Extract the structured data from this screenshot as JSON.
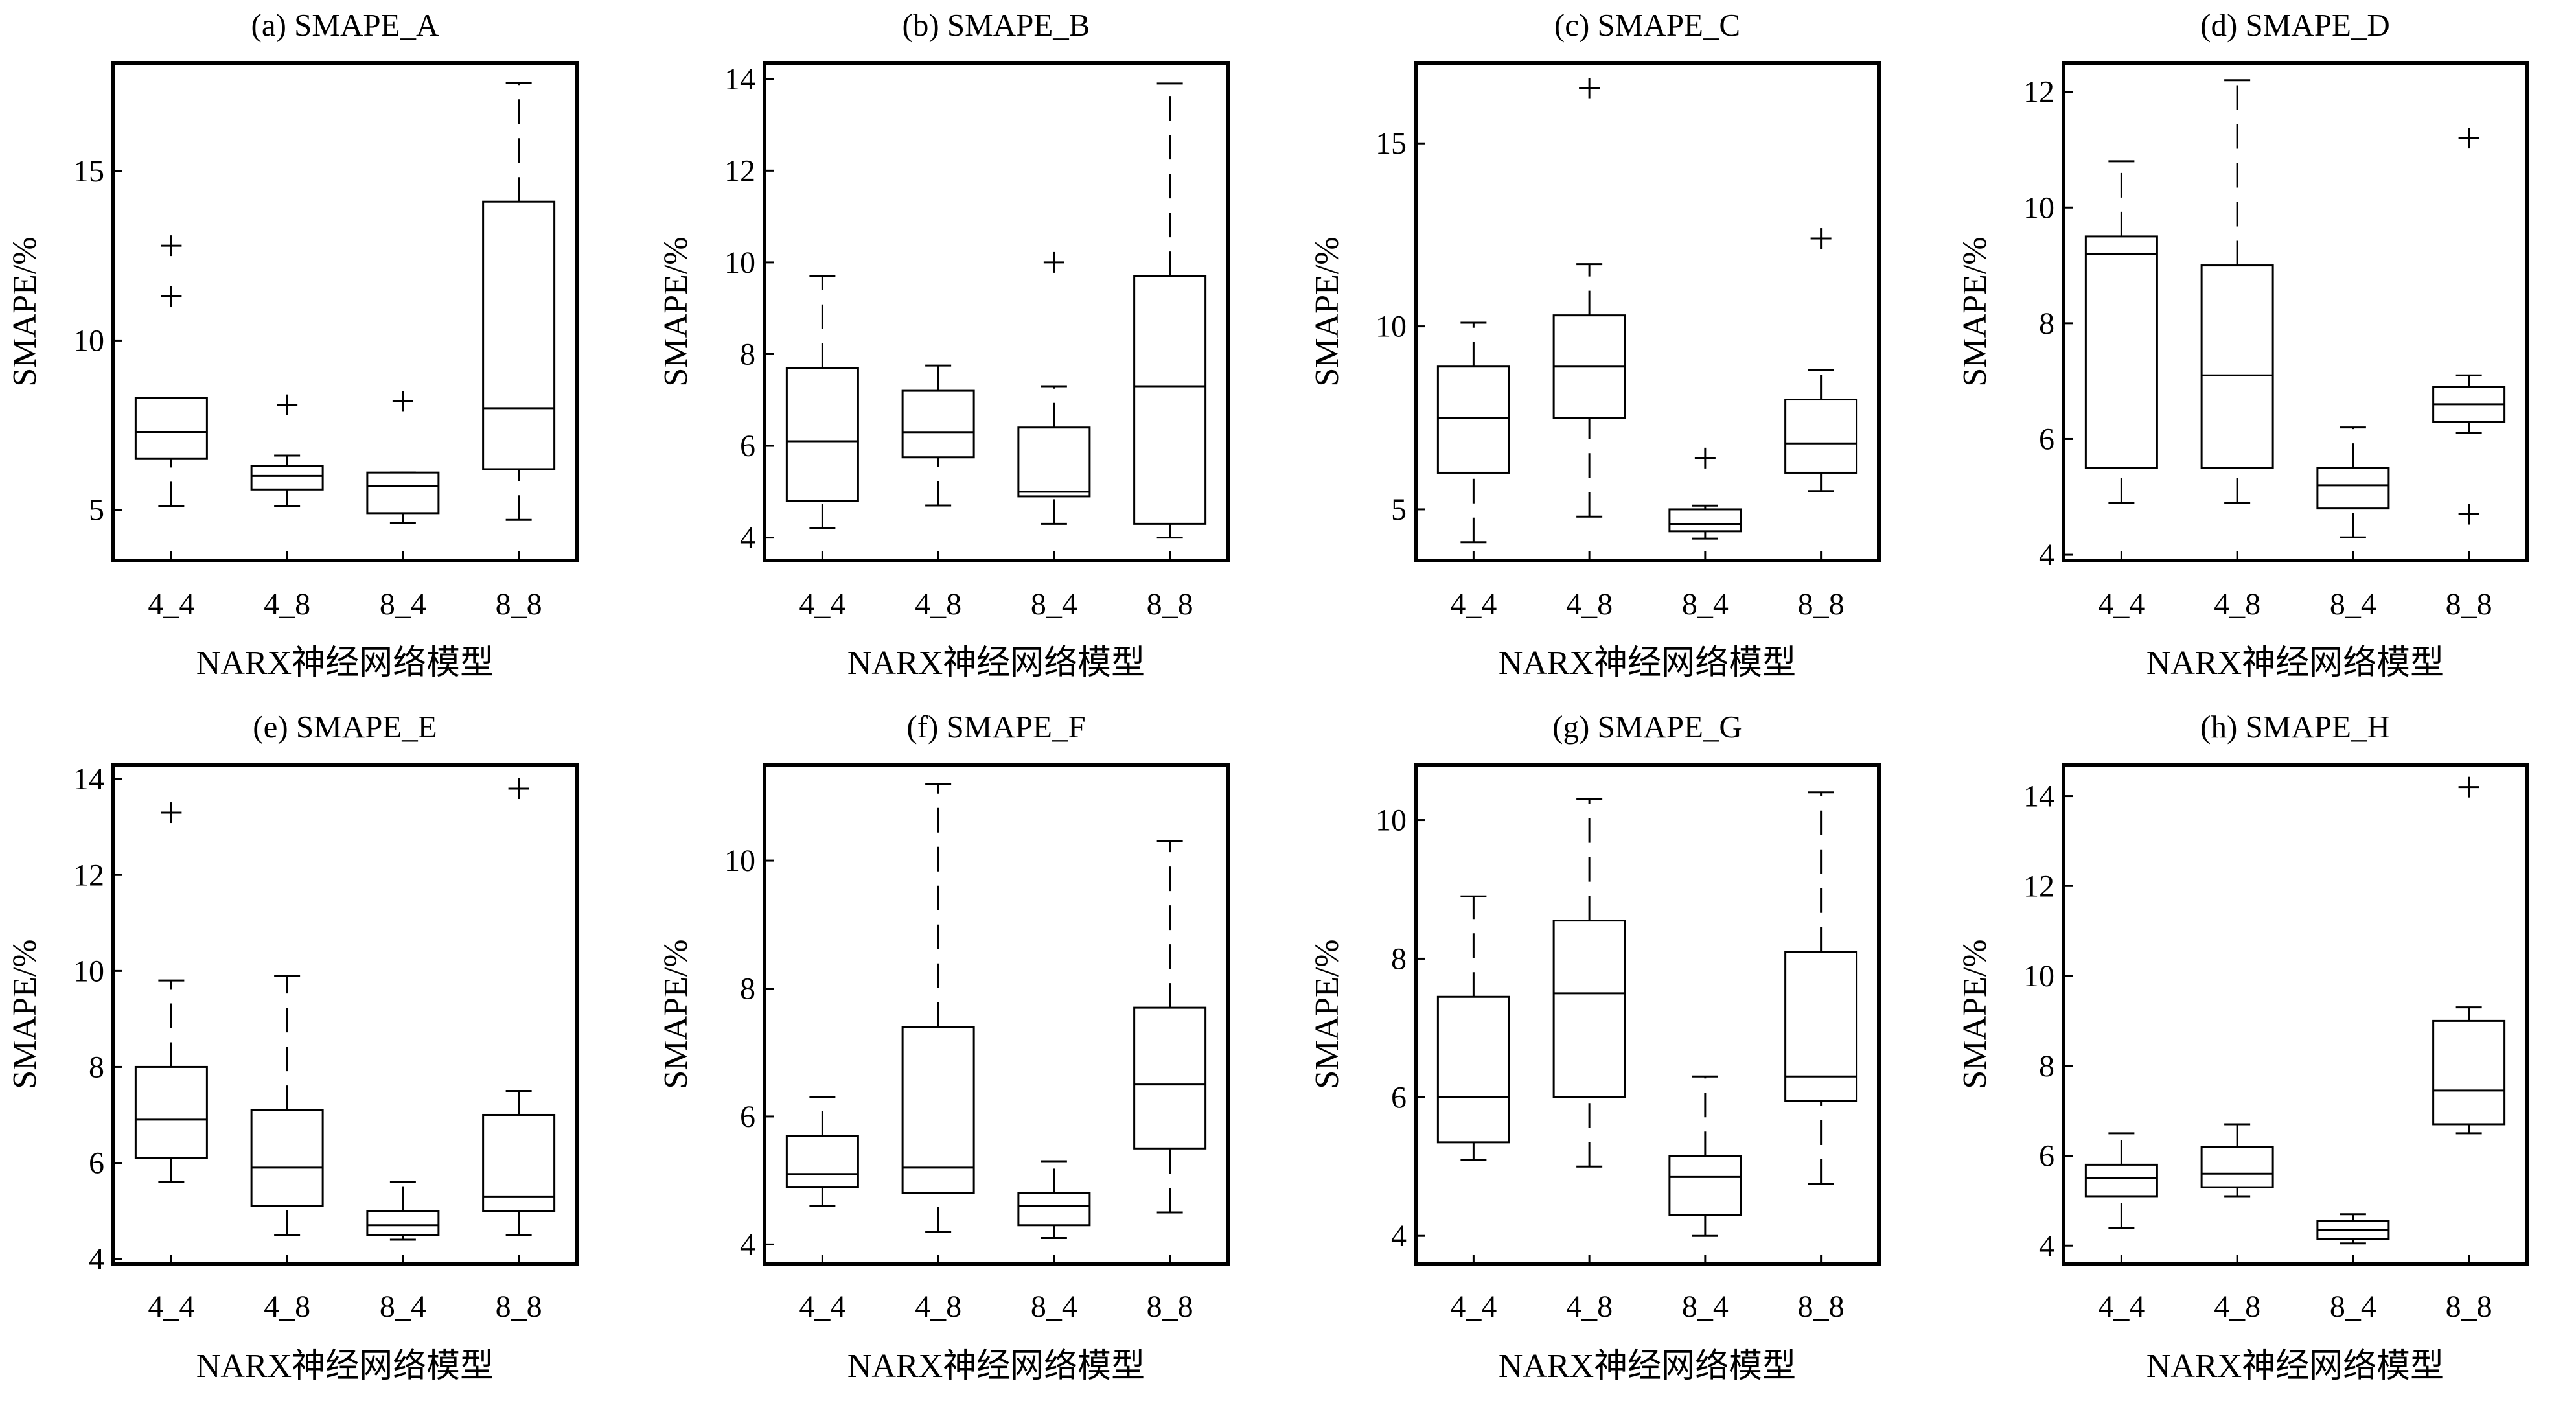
{
  "chart_data": [
    {
      "type": "box",
      "title": "(a) SMAPE_A",
      "xlabel": "NARX神经网络模型",
      "ylabel": "SMAPE/%",
      "categories": [
        "4_4",
        "4_8",
        "8_4",
        "8_8"
      ],
      "ylim": [
        3.5,
        18.2
      ],
      "yticks": [
        5,
        10,
        15
      ],
      "boxes": [
        {
          "category": "4_4",
          "whisker_low": 5.1,
          "q1": 6.5,
          "median": 7.3,
          "q3": 8.3,
          "whisker_high": 8.3,
          "outliers": [
            11.3,
            12.8
          ]
        },
        {
          "category": "4_8",
          "whisker_low": 5.1,
          "q1": 5.6,
          "median": 6.0,
          "q3": 6.3,
          "whisker_high": 6.6,
          "outliers": [
            8.1
          ]
        },
        {
          "category": "8_4",
          "whisker_low": 4.6,
          "q1": 4.9,
          "median": 5.7,
          "q3": 6.1,
          "whisker_high": 6.1,
          "outliers": [
            8.2
          ]
        },
        {
          "category": "8_8",
          "whisker_low": 4.7,
          "q1": 6.2,
          "median": 8.0,
          "q3": 14.1,
          "whisker_high": 17.6,
          "outliers": []
        }
      ]
    },
    {
      "type": "box",
      "title": "(b) SMAPE_B",
      "xlabel": "NARX神经网络模型",
      "ylabel": "SMAPE/%",
      "categories": [
        "4_4",
        "4_8",
        "8_4",
        "8_8"
      ],
      "ylim": [
        3.5,
        14.35
      ],
      "yticks": [
        4,
        6,
        8,
        10,
        12,
        14
      ],
      "boxes": [
        {
          "category": "4_4",
          "whisker_low": 4.2,
          "q1": 4.8,
          "median": 6.1,
          "q3": 7.7,
          "whisker_high": 9.7,
          "outliers": []
        },
        {
          "category": "4_8",
          "whisker_low": 4.7,
          "q1": 5.75,
          "median": 6.3,
          "q3": 7.2,
          "whisker_high": 7.75,
          "outliers": []
        },
        {
          "category": "8_4",
          "whisker_low": 4.3,
          "q1": 4.9,
          "median": 5.0,
          "q3": 6.4,
          "whisker_high": 7.3,
          "outliers": [
            10.0
          ]
        },
        {
          "category": "8_8",
          "whisker_low": 4.0,
          "q1": 4.3,
          "median": 7.3,
          "q3": 9.7,
          "whisker_high": 13.9,
          "outliers": []
        }
      ]
    },
    {
      "type": "box",
      "title": "(c) SMAPE_C",
      "xlabel": "NARX神经网络模型",
      "ylabel": "SMAPE/%",
      "categories": [
        "4_4",
        "4_8",
        "8_4",
        "8_8"
      ],
      "ylim": [
        3.6,
        17.2
      ],
      "yticks": [
        5,
        10,
        15
      ],
      "boxes": [
        {
          "category": "4_4",
          "whisker_low": 4.1,
          "q1": 6.0,
          "median": 7.5,
          "q3": 8.9,
          "whisker_high": 10.1,
          "outliers": []
        },
        {
          "category": "4_8",
          "whisker_low": 4.8,
          "q1": 7.5,
          "median": 8.9,
          "q3": 10.3,
          "whisker_high": 11.7,
          "outliers": [
            16.5
          ]
        },
        {
          "category": "8_4",
          "whisker_low": 4.2,
          "q1": 4.4,
          "median": 4.6,
          "q3": 5.0,
          "whisker_high": 5.1,
          "outliers": [
            6.4
          ]
        },
        {
          "category": "8_8",
          "whisker_low": 5.5,
          "q1": 6.0,
          "median": 6.8,
          "q3": 8.0,
          "whisker_high": 8.8,
          "outliers": [
            12.4
          ]
        }
      ]
    },
    {
      "type": "box",
      "title": "(d) SMAPE_D",
      "xlabel": "NARX神经网络模型",
      "ylabel": "SMAPE/%",
      "categories": [
        "4_4",
        "4_8",
        "8_4",
        "8_8"
      ],
      "ylim": [
        3.9,
        12.5
      ],
      "yticks": [
        4,
        6,
        8,
        10,
        12
      ],
      "boxes": [
        {
          "category": "4_4",
          "whisker_low": 4.9,
          "q1": 5.5,
          "median": 9.2,
          "q3": 9.5,
          "whisker_high": 10.8,
          "outliers": []
        },
        {
          "category": "4_8",
          "whisker_low": 4.9,
          "q1": 5.5,
          "median": 7.1,
          "q3": 9.0,
          "whisker_high": 12.2,
          "outliers": []
        },
        {
          "category": "8_4",
          "whisker_low": 4.3,
          "q1": 4.8,
          "median": 5.2,
          "q3": 5.5,
          "whisker_high": 6.2,
          "outliers": []
        },
        {
          "category": "8_8",
          "whisker_low": 6.1,
          "q1": 6.3,
          "median": 6.6,
          "q3": 6.9,
          "whisker_high": 7.1,
          "outliers": [
            4.7,
            11.2
          ]
        }
      ]
    },
    {
      "type": "box",
      "title": "(e) SMAPE_E",
      "xlabel": "NARX神经网络模型",
      "ylabel": "SMAPE/%",
      "categories": [
        "4_4",
        "4_8",
        "8_4",
        "8_8"
      ],
      "ylim": [
        3.9,
        14.3
      ],
      "yticks": [
        4,
        6,
        8,
        10,
        12,
        14
      ],
      "boxes": [
        {
          "category": "4_4",
          "whisker_low": 5.6,
          "q1": 6.1,
          "median": 6.9,
          "q3": 8.0,
          "whisker_high": 9.8,
          "outliers": [
            13.3
          ]
        },
        {
          "category": "4_8",
          "whisker_low": 4.5,
          "q1": 5.1,
          "median": 5.9,
          "q3": 7.1,
          "whisker_high": 9.9,
          "outliers": []
        },
        {
          "category": "8_4",
          "whisker_low": 4.4,
          "q1": 4.5,
          "median": 4.7,
          "q3": 5.0,
          "whisker_high": 5.6,
          "outliers": []
        },
        {
          "category": "8_8",
          "whisker_low": 4.5,
          "q1": 5.0,
          "median": 5.3,
          "q3": 7.0,
          "whisker_high": 7.5,
          "outliers": [
            13.8
          ]
        }
      ]
    },
    {
      "type": "box",
      "title": "(f) SMAPE_F",
      "xlabel": "NARX神经网络模型",
      "ylabel": "SMAPE/%",
      "categories": [
        "4_4",
        "4_8",
        "8_4",
        "8_8"
      ],
      "ylim": [
        3.7,
        11.5
      ],
      "yticks": [
        4,
        6,
        8,
        10
      ],
      "boxes": [
        {
          "category": "4_4",
          "whisker_low": 4.6,
          "q1": 4.9,
          "median": 5.1,
          "q3": 5.7,
          "whisker_high": 6.3,
          "outliers": []
        },
        {
          "category": "4_8",
          "whisker_low": 4.2,
          "q1": 4.8,
          "median": 5.2,
          "q3": 7.4,
          "whisker_high": 11.2,
          "outliers": []
        },
        {
          "category": "8_4",
          "whisker_low": 4.1,
          "q1": 4.3,
          "median": 4.6,
          "q3": 4.8,
          "whisker_high": 5.3,
          "outliers": []
        },
        {
          "category": "8_8",
          "whisker_low": 4.5,
          "q1": 5.5,
          "median": 6.5,
          "q3": 7.7,
          "whisker_high": 10.3,
          "outliers": []
        }
      ]
    },
    {
      "type": "box",
      "title": "(g) SMAPE_G",
      "xlabel": "NARX神经网络模型",
      "ylabel": "SMAPE/%",
      "categories": [
        "4_4",
        "4_8",
        "8_4",
        "8_8"
      ],
      "ylim": [
        3.6,
        10.8
      ],
      "yticks": [
        4,
        6,
        8,
        10
      ],
      "boxes": [
        {
          "category": "4_4",
          "whisker_low": 5.1,
          "q1": 5.35,
          "median": 6.0,
          "q3": 7.45,
          "whisker_high": 8.9,
          "outliers": []
        },
        {
          "category": "4_8",
          "whisker_low": 5.0,
          "q1": 6.0,
          "median": 7.5,
          "q3": 8.55,
          "whisker_high": 10.3,
          "outliers": []
        },
        {
          "category": "8_4",
          "whisker_low": 4.0,
          "q1": 4.3,
          "median": 4.85,
          "q3": 5.15,
          "whisker_high": 6.3,
          "outliers": []
        },
        {
          "category": "8_8",
          "whisker_low": 4.75,
          "q1": 5.95,
          "median": 6.3,
          "q3": 8.1,
          "whisker_high": 10.4,
          "outliers": []
        }
      ]
    },
    {
      "type": "box",
      "title": "(h) SMAPE_H",
      "xlabel": "NARX神经网络模型",
      "ylabel": "SMAPE/%",
      "categories": [
        "4_4",
        "4_8",
        "8_4",
        "8_8"
      ],
      "ylim": [
        3.6,
        14.7
      ],
      "yticks": [
        4,
        6,
        8,
        10,
        12,
        14
      ],
      "boxes": [
        {
          "category": "4_4",
          "whisker_low": 4.4,
          "q1": 5.1,
          "median": 5.5,
          "q3": 5.8,
          "whisker_high": 6.5,
          "outliers": []
        },
        {
          "category": "4_8",
          "whisker_low": 5.1,
          "q1": 5.3,
          "median": 5.6,
          "q3": 6.2,
          "whisker_high": 6.7,
          "outliers": []
        },
        {
          "category": "8_4",
          "whisker_low": 4.05,
          "q1": 4.15,
          "median": 4.35,
          "q3": 4.55,
          "whisker_high": 4.7,
          "outliers": []
        },
        {
          "category": "8_8",
          "whisker_low": 6.5,
          "q1": 6.7,
          "median": 7.45,
          "q3": 9.0,
          "whisker_high": 9.3,
          "outliers": [
            14.2
          ]
        }
      ]
    }
  ]
}
